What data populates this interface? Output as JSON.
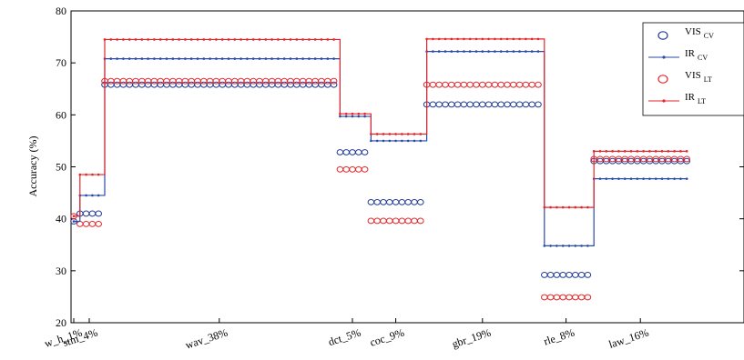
{
  "chart_data": {
    "type": "line",
    "xlabel": "",
    "ylabel": "Accuracy (%)",
    "ylim": [
      20,
      80
    ],
    "yticks": [
      20,
      30,
      40,
      50,
      60,
      70,
      80
    ],
    "grid": false,
    "legend_position": "top-right",
    "categories": [
      "w_h_1%",
      "stm_4%",
      "wav_38%",
      "dct_5%",
      "coc_9%",
      "gbr_19%",
      "rle_8%",
      "law_16%"
    ],
    "segments": [
      {
        "category": "w_h_1%",
        "points": 1,
        "values": {
          "VIS_CV": 39.5,
          "IR_CV": 39.5,
          "VIS_LT": 40.5,
          "IR_LT": 40.5
        }
      },
      {
        "category": "stm_4%",
        "points": 4,
        "values": {
          "VIS_CV": 41,
          "IR_CV": 44.5,
          "VIS_LT": 39,
          "IR_LT": 48.5
        }
      },
      {
        "category": "wav_38%",
        "points": 38,
        "values": {
          "VIS_CV": 65.8,
          "IR_CV": 70.8,
          "VIS_LT": 66.5,
          "IR_LT": 74.5
        }
      },
      {
        "category": "dct_5%",
        "points": 5,
        "values": {
          "VIS_CV": 52.8,
          "IR_CV": 59.7,
          "VIS_LT": 49.5,
          "IR_LT": 60.2
        }
      },
      {
        "category": "coc_9%",
        "points": 9,
        "values": {
          "VIS_CV": 43.2,
          "IR_CV": 55,
          "VIS_LT": 39.6,
          "IR_LT": 56.3
        }
      },
      {
        "category": "gbr_19%",
        "points": 19,
        "values": {
          "VIS_CV": 62,
          "IR_CV": 72.2,
          "VIS_LT": 65.8,
          "IR_LT": 74.6
        }
      },
      {
        "category": "rle_8%",
        "points": 8,
        "values": {
          "VIS_CV": 29.2,
          "IR_CV": 34.8,
          "VIS_LT": 24.9,
          "IR_LT": 42.2
        }
      },
      {
        "category": "law_16%",
        "points": 16,
        "values": {
          "VIS_CV": 51.1,
          "IR_CV": 47.7,
          "VIS_LT": 51.5,
          "IR_LT": 53
        }
      }
    ],
    "series": [
      {
        "key": "VIS_CV",
        "base": "VIS",
        "sub": "CV",
        "style": "circles",
        "color": "#1f3a93"
      },
      {
        "key": "IR_CV",
        "base": "IR",
        "sub": "CV",
        "style": "line-dot",
        "color": "#2a4aa8"
      },
      {
        "key": "VIS_LT",
        "base": "VIS",
        "sub": "LT",
        "style": "circles",
        "color": "#e3262b"
      },
      {
        "key": "IR_LT",
        "base": "IR",
        "sub": "LT",
        "style": "line-dot",
        "color": "#e3262b"
      }
    ]
  }
}
